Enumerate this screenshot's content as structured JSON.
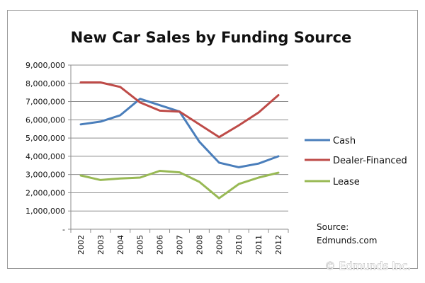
{
  "chart_data": {
    "type": "line",
    "title": "New Car Sales by Funding Source",
    "xlabel": "",
    "ylabel": "",
    "x": [
      "2002",
      "2003",
      "2004",
      "2005",
      "2006",
      "2007",
      "2008",
      "2009",
      "2010",
      "2011",
      "2012"
    ],
    "ylim": [
      0,
      9000000
    ],
    "yticks": [
      "-",
      "1,000,000",
      "2,000,000",
      "3,000,000",
      "4,000,000",
      "5,000,000",
      "6,000,000",
      "7,000,000",
      "8,000,000",
      "9,000,000"
    ],
    "grid": true,
    "legend_position": "right",
    "series": [
      {
        "name": "Cash",
        "color": "#4a7ebb",
        "values": [
          5750000,
          5900000,
          6250000,
          7150000,
          6800000,
          6450000,
          4800000,
          3650000,
          3400000,
          3600000,
          4000000
        ]
      },
      {
        "name": "Dealer-Financed",
        "color": "#be4b48",
        "values": [
          8050000,
          8050000,
          7800000,
          6950000,
          6500000,
          6450000,
          5750000,
          5050000,
          5700000,
          6400000,
          7350000
        ]
      },
      {
        "name": "Lease",
        "color": "#98b954",
        "values": [
          2950000,
          2700000,
          2780000,
          2830000,
          3200000,
          3120000,
          2600000,
          1700000,
          2480000,
          2830000,
          3100000
        ]
      }
    ]
  },
  "annotations": {
    "source_label": "Source:",
    "source_value": "Edmunds.com",
    "watermark": "© Edmunds Inc."
  }
}
